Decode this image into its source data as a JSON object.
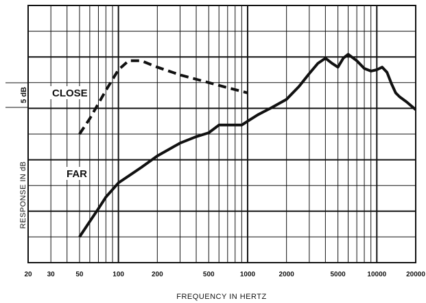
{
  "chart_data": {
    "type": "line",
    "xscale": "log",
    "xlim": [
      20,
      20000
    ],
    "ylim": [
      0,
      10
    ],
    "xlabel": "FREQUENCY IN HERTZ",
    "ylabel": "RESPONSE IN dB",
    "scale_label": "5 dB",
    "x_ticks": [
      {
        "value": 20,
        "label": "20"
      },
      {
        "value": 30,
        "label": "30"
      },
      {
        "value": 50,
        "label": "50"
      },
      {
        "value": 100,
        "label": "100"
      },
      {
        "value": 200,
        "label": "200"
      },
      {
        "value": 500,
        "label": "500"
      },
      {
        "value": 1000,
        "label": "1000"
      },
      {
        "value": 2000,
        "label": "2000"
      },
      {
        "value": 5000,
        "label": "5000"
      },
      {
        "value": 10000,
        "label": "10000"
      },
      {
        "value": 20000,
        "label": "20000"
      }
    ],
    "grid": true,
    "series": [
      {
        "name": "CLOSE",
        "style": "dashed",
        "points": [
          [
            50,
            5.0
          ],
          [
            60,
            5.6
          ],
          [
            80,
            6.7
          ],
          [
            100,
            7.5
          ],
          [
            120,
            7.85
          ],
          [
            150,
            7.85
          ],
          [
            200,
            7.6
          ],
          [
            300,
            7.3
          ],
          [
            500,
            7.0
          ],
          [
            700,
            6.8
          ],
          [
            1000,
            6.6
          ]
        ]
      },
      {
        "name": "FAR",
        "style": "solid",
        "points": [
          [
            50,
            1.0
          ],
          [
            60,
            1.6
          ],
          [
            70,
            2.1
          ],
          [
            80,
            2.55
          ],
          [
            100,
            3.1
          ],
          [
            150,
            3.7
          ],
          [
            200,
            4.15
          ],
          [
            300,
            4.65
          ],
          [
            400,
            4.9
          ],
          [
            500,
            5.05
          ],
          [
            600,
            5.35
          ],
          [
            700,
            5.35
          ],
          [
            900,
            5.35
          ],
          [
            1000,
            5.5
          ],
          [
            1200,
            5.75
          ],
          [
            1500,
            6.0
          ],
          [
            2000,
            6.35
          ],
          [
            2500,
            6.85
          ],
          [
            3000,
            7.35
          ],
          [
            3500,
            7.75
          ],
          [
            4000,
            7.95
          ],
          [
            4500,
            7.75
          ],
          [
            5000,
            7.6
          ],
          [
            5500,
            7.95
          ],
          [
            6000,
            8.1
          ],
          [
            7000,
            7.85
          ],
          [
            8000,
            7.55
          ],
          [
            9000,
            7.45
          ],
          [
            10000,
            7.5
          ],
          [
            11000,
            7.6
          ],
          [
            12000,
            7.4
          ],
          [
            13000,
            6.95
          ],
          [
            14000,
            6.6
          ],
          [
            15000,
            6.45
          ],
          [
            17000,
            6.25
          ],
          [
            20000,
            5.95
          ]
        ]
      }
    ],
    "colors": {
      "line": "#111111",
      "grid": "#111111",
      "background": "#ffffff"
    }
  }
}
